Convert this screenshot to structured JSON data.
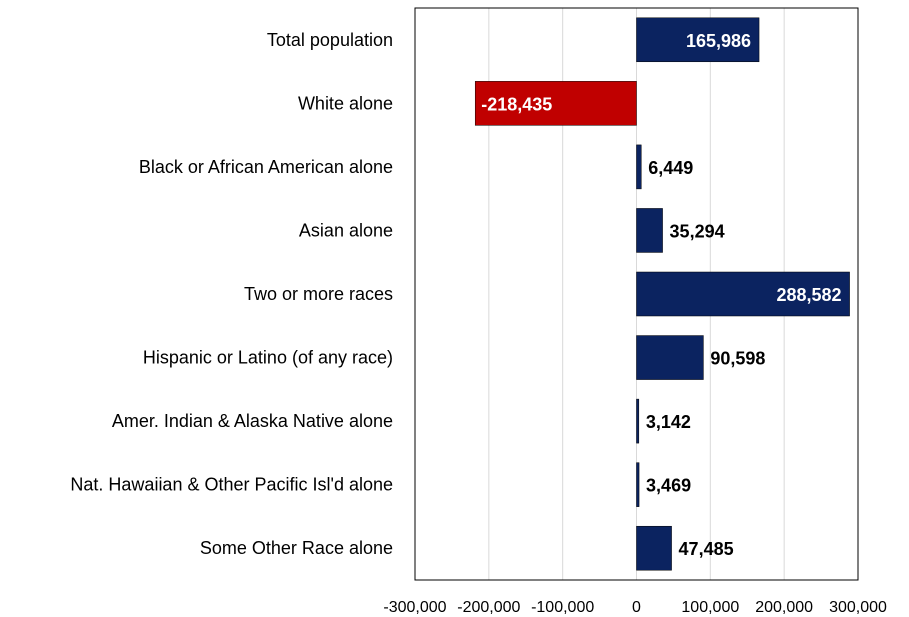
{
  "chart_data": {
    "type": "bar",
    "orientation": "horizontal",
    "categories": [
      "Total population",
      "White alone",
      "Black or African American alone",
      "Asian alone",
      "Two or more races",
      "Hispanic or Latino (of any race)",
      "Amer. Indian & Alaska Native alone",
      "Nat. Hawaiian & Other Pacific Isl'd alone",
      "Some Other Race alone"
    ],
    "values": [
      165986,
      -218435,
      6449,
      35294,
      288582,
      90598,
      3142,
      3469,
      47485
    ],
    "value_labels": [
      "165,986",
      "-218,435",
      "6,449",
      "35,294",
      "288,582",
      "90,598",
      "3,142",
      "3,469",
      "47,485"
    ],
    "xlim": [
      -300000,
      300000
    ],
    "x_ticks": [
      -300000,
      -200000,
      -100000,
      0,
      100000,
      200000,
      300000
    ],
    "x_tick_labels": [
      "-300,000",
      "-200,000",
      "-100,000",
      "0",
      "100,000",
      "200,000",
      "300,000"
    ],
    "grid": true,
    "colors": {
      "positive": "#0b2360",
      "negative": "#c00000",
      "grid": "#d9d9d9",
      "border": "#000000"
    }
  }
}
